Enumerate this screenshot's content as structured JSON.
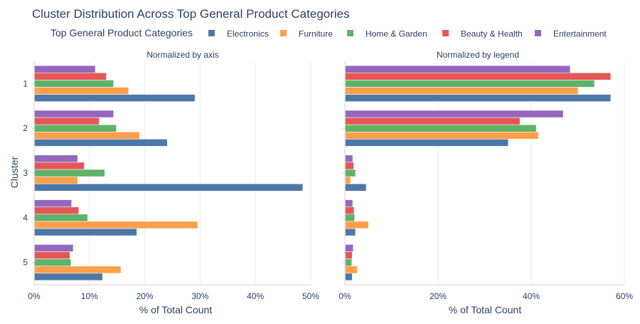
{
  "chart_data": {
    "type": "bar",
    "orientation": "horizontal",
    "title": "Cluster Distribution Across Top General Product Categories",
    "legend_title": "Top General Product Categories",
    "legend_placement": "top",
    "ylabel": "Cluster",
    "categories": [
      "1",
      "2",
      "3",
      "4",
      "5"
    ],
    "series_meta": [
      {
        "name": "Electronics",
        "color": "#4c78a8"
      },
      {
        "name": "Furniture",
        "color": "#ff9f4a"
      },
      {
        "name": "Home & Garden",
        "color": "#5fb26a"
      },
      {
        "name": "Beauty & Health",
        "color": "#e45756"
      },
      {
        "name": "Entertainment",
        "color": "#9467bd"
      }
    ],
    "panels": [
      {
        "subtitle": "Normalized by axis",
        "xlabel": "% of Total Count",
        "xlim": [
          0,
          0.5
        ],
        "xticks": [
          0,
          0.1,
          0.2,
          0.3,
          0.4,
          0.5
        ],
        "xtick_labels": [
          "0%",
          "10%",
          "20%",
          "30%",
          "40%",
          "50%"
        ],
        "grid": true,
        "series": [
          {
            "name": "Electronics",
            "values": [
              0.29,
              0.24,
              0.485,
              0.185,
              0.123
            ]
          },
          {
            "name": "Furniture",
            "values": [
              0.17,
              0.19,
              0.078,
              0.295,
              0.156
            ]
          },
          {
            "name": "Home & Garden",
            "values": [
              0.143,
              0.148,
              0.127,
              0.096,
              0.066
            ]
          },
          {
            "name": "Beauty & Health",
            "values": [
              0.13,
              0.117,
              0.09,
              0.08,
              0.064
            ]
          },
          {
            "name": "Entertainment",
            "values": [
              0.11,
              0.143,
              0.078,
              0.067,
              0.07
            ]
          }
        ]
      },
      {
        "subtitle": "Normalized by legend",
        "xlabel": "% of Total Count",
        "xlim": [
          0,
          0.6
        ],
        "xticks": [
          0,
          0.2,
          0.4,
          0.6
        ],
        "xtick_labels": [
          "0%",
          "20%",
          "40%",
          "60%"
        ],
        "grid": true,
        "series": [
          {
            "name": "Electronics",
            "values": [
              0.57,
              0.35,
              0.045,
              0.022,
              0.015
            ]
          },
          {
            "name": "Furniture",
            "values": [
              0.5,
              0.415,
              0.011,
              0.05,
              0.026
            ]
          },
          {
            "name": "Home & Garden",
            "values": [
              0.535,
              0.41,
              0.022,
              0.02,
              0.014
            ]
          },
          {
            "name": "Beauty & Health",
            "values": [
              0.57,
              0.375,
              0.018,
              0.019,
              0.015
            ]
          },
          {
            "name": "Entertainment",
            "values": [
              0.483,
              0.468,
              0.016,
              0.016,
              0.017
            ]
          }
        ]
      }
    ]
  }
}
